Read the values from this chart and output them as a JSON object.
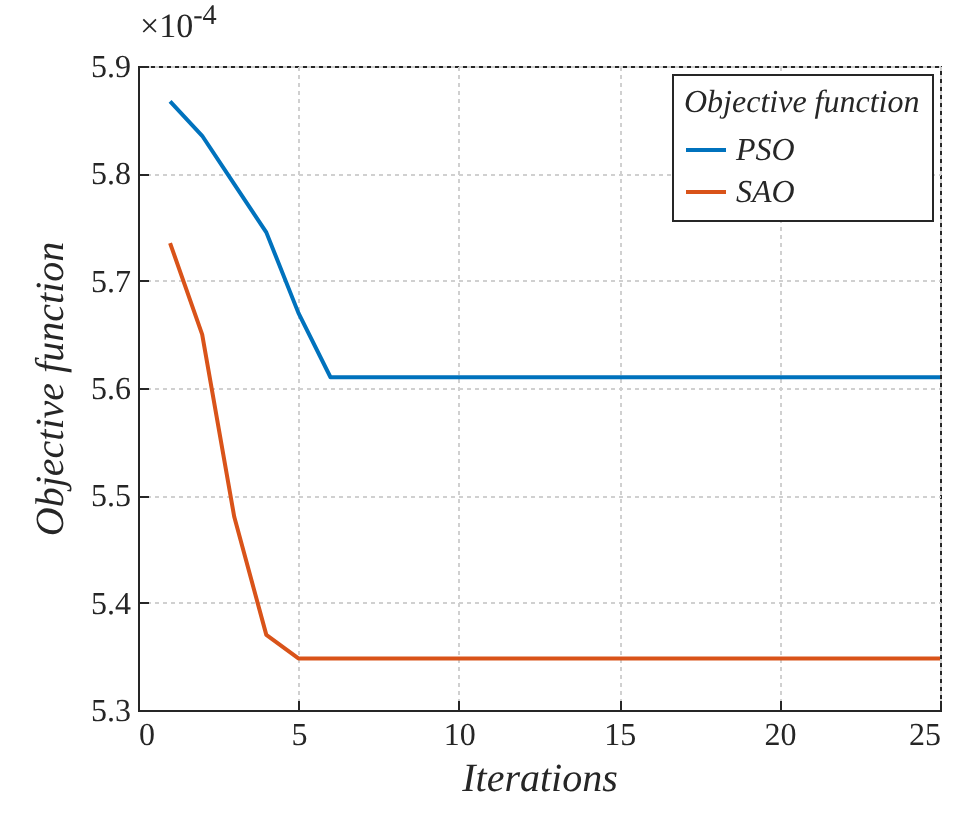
{
  "chart_data": {
    "type": "line",
    "xlabel": "Iterations",
    "ylabel": "Objective function",
    "legend_title": "Objective function",
    "x": [
      1,
      2,
      3,
      4,
      5,
      6,
      7,
      8,
      9,
      10,
      11,
      12,
      13,
      14,
      15,
      16,
      17,
      18,
      19,
      20,
      21,
      22,
      23,
      24,
      25
    ],
    "series": [
      {
        "name": "PSO",
        "color": "#0072bd",
        "values": [
          5.867,
          5.835,
          5.79,
          5.745,
          5.67,
          5.61,
          5.61,
          5.61,
          5.61,
          5.61,
          5.61,
          5.61,
          5.61,
          5.61,
          5.61,
          5.61,
          5.61,
          5.61,
          5.61,
          5.61,
          5.61,
          5.61,
          5.61,
          5.61,
          5.61
        ]
      },
      {
        "name": "SAO",
        "color": "#d95319",
        "values": [
          5.735,
          5.65,
          5.48,
          5.37,
          5.348,
          5.348,
          5.348,
          5.348,
          5.348,
          5.348,
          5.348,
          5.348,
          5.348,
          5.348,
          5.348,
          5.348,
          5.348,
          5.348,
          5.348,
          5.348,
          5.348,
          5.348,
          5.348,
          5.348,
          5.348
        ]
      }
    ],
    "xlim": [
      0,
      25
    ],
    "xticks": [
      0,
      5,
      10,
      15,
      20,
      25
    ],
    "ylim": [
      5.3,
      5.9
    ],
    "yticks": [
      5.3,
      5.4,
      5.5,
      5.6,
      5.7,
      5.8,
      5.9
    ],
    "annotations": [
      "×10$^{-4}$"
    ],
    "grid": true,
    "legend": "top right",
    "marker": "none",
    "line_style": "solid"
  }
}
